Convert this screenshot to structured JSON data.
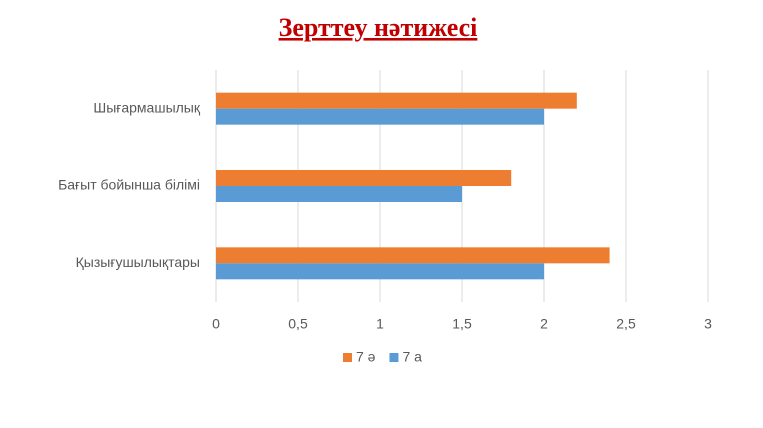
{
  "chart_data": {
    "type": "hbar",
    "title": "Зерттеу нәтижесі",
    "categories": [
      "Шығармашылық",
      "Бағыт бойынша білімі",
      "Қызығушылықтары"
    ],
    "series": [
      {
        "name": "7 ә",
        "color": "#ed7d31",
        "values": [
          2.2,
          1.8,
          2.4
        ]
      },
      {
        "name": "7 а",
        "color": "#5b9bd5",
        "values": [
          2,
          1.5,
          2
        ]
      }
    ],
    "xlim": [
      0,
      3
    ],
    "xticks": [
      0,
      {
        "value": 0.5,
        "label": "0,5"
      },
      1,
      {
        "value": 1.5,
        "label": "1,5"
      },
      2,
      {
        "value": 2.5,
        "label": "2,5"
      },
      3
    ],
    "grid": true,
    "legend": "bottom"
  }
}
